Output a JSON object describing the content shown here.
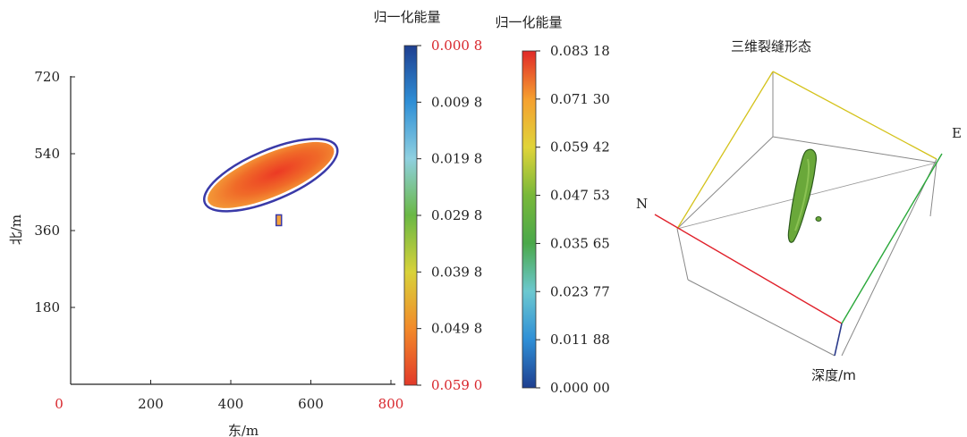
{
  "colors": {
    "accent_red": "#d8262c",
    "axis": "#222222",
    "box_edge": "#888888",
    "north_edge": "#e0202a",
    "east_edge": "#2aa83a",
    "depth_edge": "#2a3a8a",
    "top_edge": "#d4c21a",
    "fracture_green": "#6aa83a"
  },
  "chart_data": [
    {
      "type": "heatmap",
      "xlabel": "东/m",
      "ylabel": "北/m",
      "xlim": [
        0,
        800
      ],
      "ylim": [
        0,
        720
      ],
      "x_ticks": [
        "0",
        "200",
        "400",
        "600",
        "800"
      ],
      "y_ticks": [
        "180",
        "360",
        "540",
        "720"
      ],
      "highlighted_x_ticks": [
        "0",
        "800"
      ],
      "grid": false,
      "anomaly": {
        "center_x": 500,
        "center_y": 490,
        "semi_major_m": 170,
        "semi_minor_m": 50,
        "rotation_deg": 23,
        "normalized_energy_range": [
          0.0008,
          0.059
        ]
      },
      "colorbar": {
        "title": "归一化能量",
        "ticks": [
          "0.000 8",
          "0.009 8",
          "0.019 8",
          "0.029 8",
          "0.039 8",
          "0.049 8",
          "0.059 0"
        ],
        "highlighted_ticks": [
          "0.000 8",
          "0.059 0"
        ],
        "scale_top_to_bottom": [
          "#1e3f90",
          "#2f8fd6",
          "#8fd0e0",
          "#6ab844",
          "#d8d23a",
          "#f28a2a",
          "#e23a2a"
        ]
      }
    },
    {
      "type": "3d-scatter",
      "title": "三维裂缝形态",
      "axis_labels": {
        "north": "N",
        "east": "E",
        "depth": "深度/m"
      },
      "colorbar": {
        "title": "归一化能量",
        "ticks": [
          "0.083 18",
          "0.071 30",
          "0.059 42",
          "0.047 53",
          "0.035 65",
          "0.023 77",
          "0.011 88",
          "0.000 00"
        ],
        "scale_top_to_bottom": [
          "#e02828",
          "#f5a030",
          "#e0d43a",
          "#78b83a",
          "#4aa84a",
          "#6cc8d0",
          "#2f8fd6",
          "#1e3f90"
        ]
      }
    }
  ]
}
